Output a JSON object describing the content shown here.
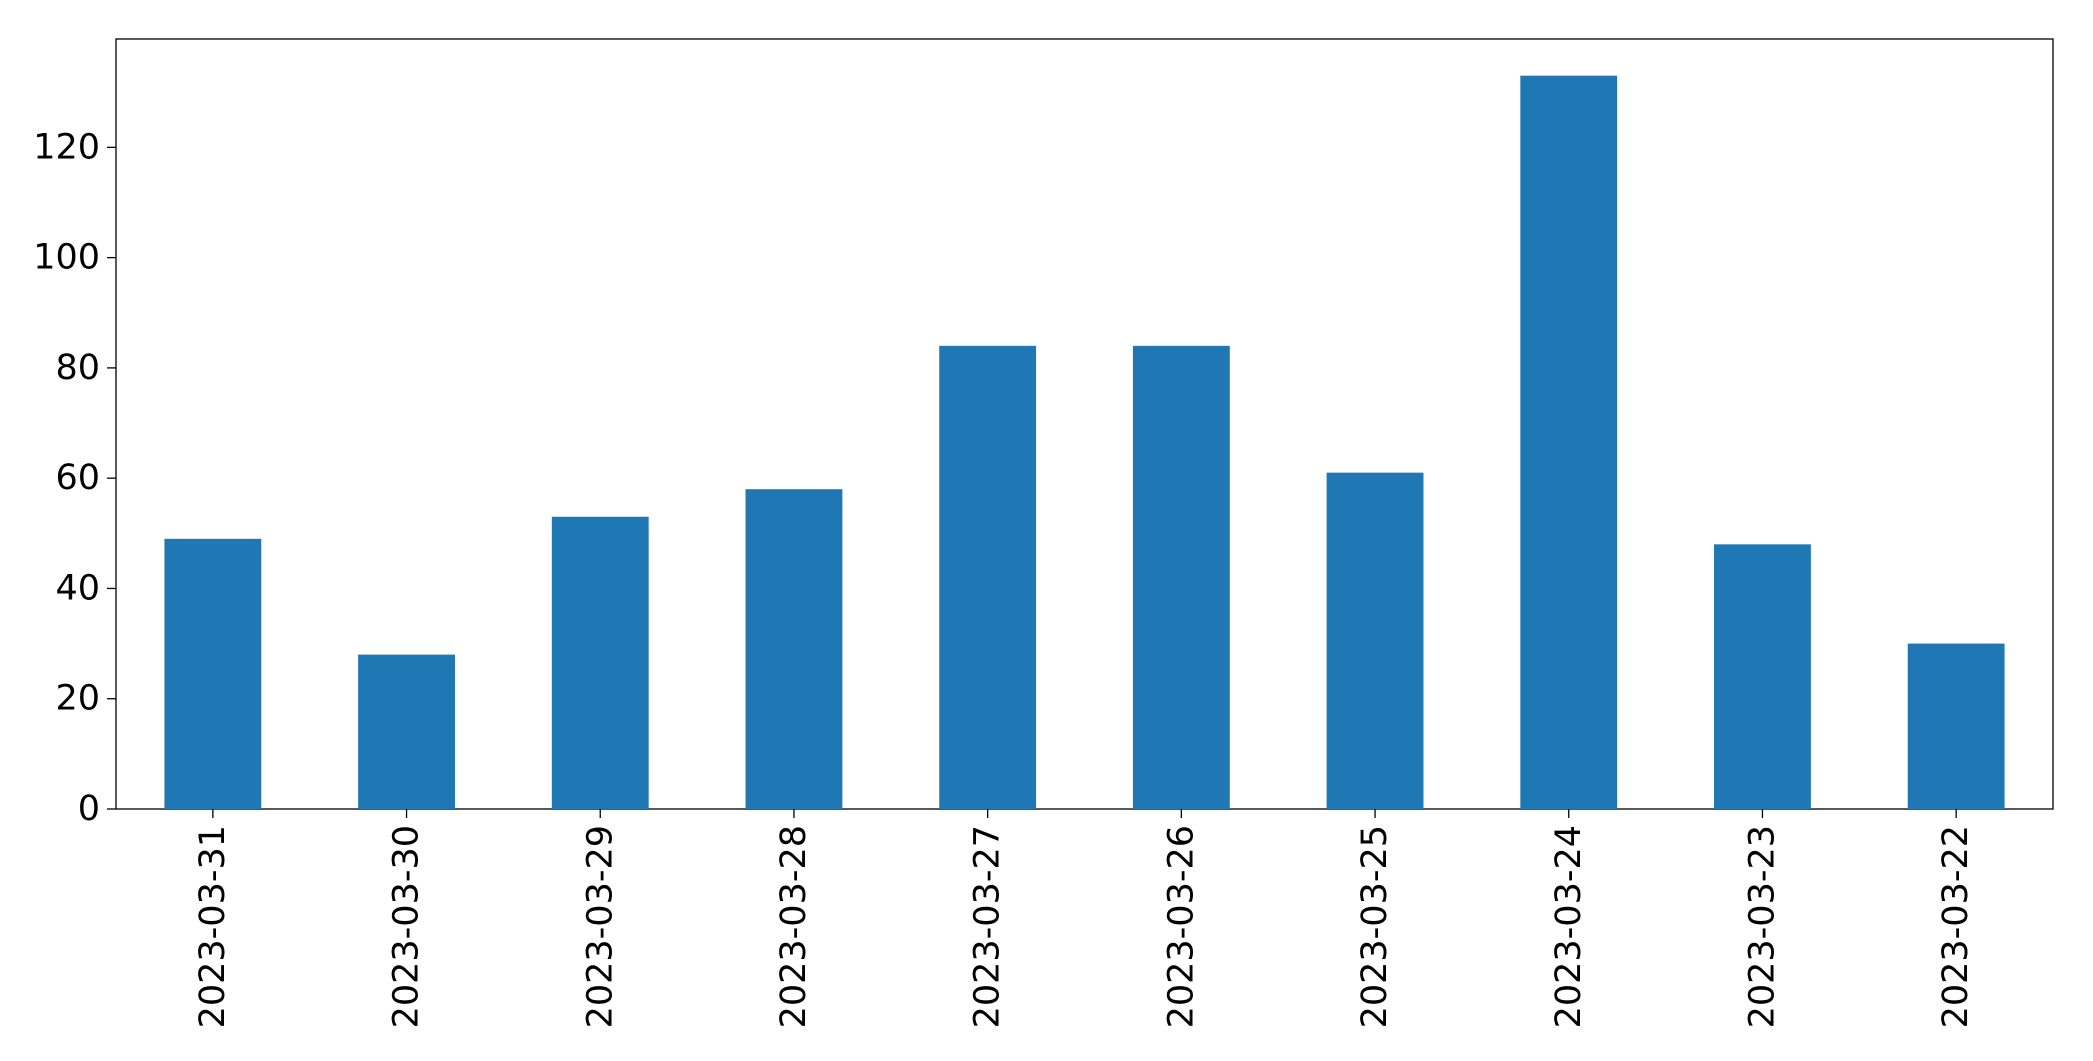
{
  "chart_data": {
    "type": "bar",
    "categories": [
      "2023-03-31",
      "2023-03-30",
      "2023-03-29",
      "2023-03-28",
      "2023-03-27",
      "2023-03-26",
      "2023-03-25",
      "2023-03-24",
      "2023-03-23",
      "2023-03-22"
    ],
    "values": [
      49,
      28,
      53,
      58,
      84,
      84,
      61,
      133,
      48,
      30
    ],
    "color": "#1f77b4",
    "ylim": [
      0,
      139.65
    ],
    "yticks": [
      0,
      20,
      40,
      60,
      80,
      100,
      120
    ],
    "grid": false
  }
}
